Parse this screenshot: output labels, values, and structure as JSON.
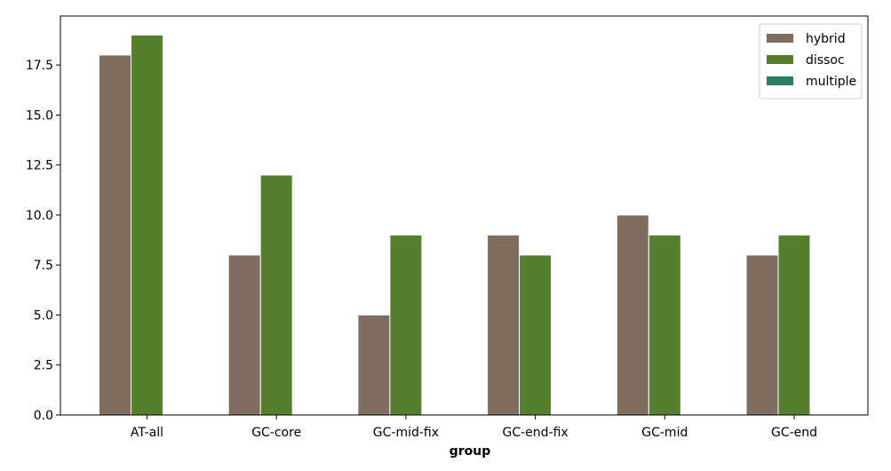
{
  "chart_data": {
    "type": "bar",
    "xlabel": "group",
    "ylabel": "",
    "categories": [
      "AT-all",
      "GC-core",
      "GC-mid-fix",
      "GC-end-fix",
      "GC-mid",
      "GC-end"
    ],
    "series": [
      {
        "name": "hybrid",
        "color": "#7f6d5f",
        "values": [
          18,
          8,
          5,
          9,
          10,
          8
        ]
      },
      {
        "name": "dissoc",
        "color": "#557f2d",
        "values": [
          19,
          12,
          9,
          8,
          9,
          9
        ]
      },
      {
        "name": "multiple",
        "color": "#2d7f5e",
        "values": [
          0,
          0,
          0,
          0,
          0,
          0
        ]
      }
    ],
    "ylim": [
      0,
      19.95
    ],
    "yticks": [
      "0.0",
      "2.5",
      "5.0",
      "7.5",
      "10.0",
      "12.5",
      "15.0",
      "17.5"
    ],
    "ytick_values": [
      0,
      2.5,
      5,
      7.5,
      10,
      12.5,
      15,
      17.5
    ],
    "legend_position": "top-right",
    "grid": false
  }
}
